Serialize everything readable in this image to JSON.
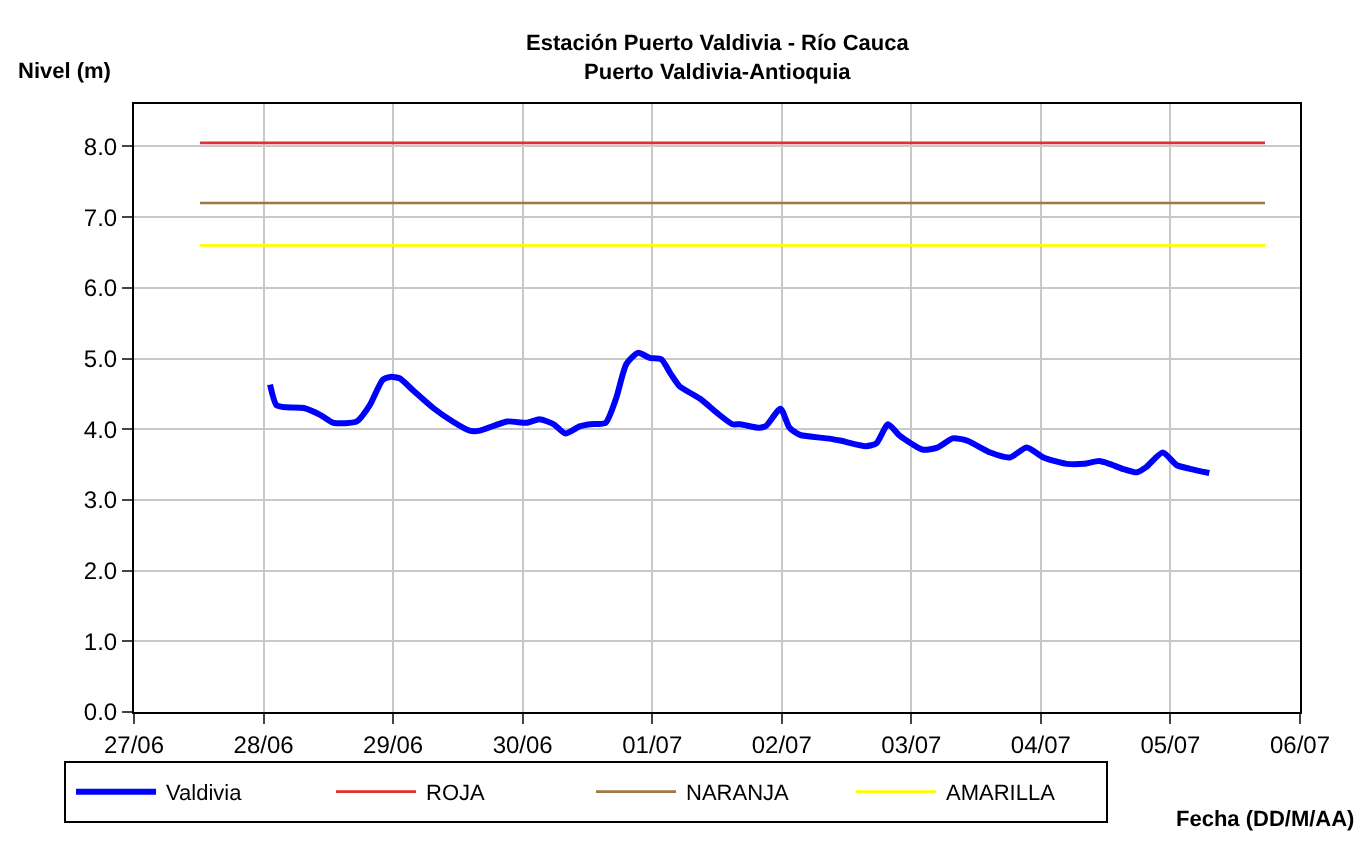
{
  "chart_data": {
    "type": "line",
    "title": "Estación Puerto Valdivia - Río Cauca",
    "subtitle": "Puerto Valdivia-Antioquia",
    "xlabel": "Fecha (DD/M/AA)",
    "ylabel": "Nivel (m)",
    "xlim": [
      "--06-27",
      "--07-06"
    ],
    "xticks": [
      {
        "value": "--06-27",
        "label": "27/06"
      },
      {
        "value": "--06-28",
        "label": "28/06"
      },
      {
        "value": "--06-29",
        "label": "29/06"
      },
      {
        "value": "--06-30",
        "label": "30/06"
      },
      {
        "value": "--07-01",
        "label": "01/07"
      },
      {
        "value": "--07-02",
        "label": "02/07"
      },
      {
        "value": "--07-03",
        "label": "03/07"
      },
      {
        "value": "--07-04",
        "label": "04/07"
      },
      {
        "value": "--07-05",
        "label": "05/07"
      },
      {
        "value": "--07-06",
        "label": "06/07"
      }
    ],
    "ylim": [
      0,
      8.6
    ],
    "yticks": [
      {
        "value": 0,
        "label": "0.0"
      },
      {
        "value": 1,
        "label": "1.0"
      },
      {
        "value": 2,
        "label": "2.0"
      },
      {
        "value": 3,
        "label": "3.0"
      },
      {
        "value": 4,
        "label": "4.0"
      },
      {
        "value": 5,
        "label": "5.0"
      },
      {
        "value": 6,
        "label": "6.0"
      },
      {
        "value": 7,
        "label": "7.0"
      },
      {
        "value": 8,
        "label": "8.0"
      }
    ],
    "grid": true,
    "legend": "bottom",
    "marker": "none",
    "line_style": "solid",
    "series": [
      {
        "name": "Valdivia",
        "color": "#0000ff",
        "x": [
          "--06-28T01:12",
          "--06-28T02:24",
          "--06-28T04:19",
          "--06-28T07:26",
          "--06-28T10:34",
          "--06-28T12:58",
          "--06-28T17:17",
          "--06-28T19:41",
          "--06-28T22:05",
          "--06-28T23:31",
          "--06-29T01:12",
          "--06-29T03:50",
          "--06-29T07:26",
          "--06-29T11:02",
          "--06-29T14:10",
          "--06-29T16:05",
          "--06-29T21:07",
          "--06-30T00:43",
          "--06-30T03:07",
          "--06-30T05:46",
          "--06-30T07:55",
          "--06-30T10:34",
          "--06-30T12:29",
          "--06-30T15:22",
          "--06-30T17:17",
          "--06-30T19:12",
          "--06-30T21:22",
          "--06-30T23:31",
          "--07-01T01:41",
          "--07-01T03:22",
          "--07-01T05:02",
          "--07-01T08:53",
          "--07-01T12:00",
          "--07-01T14:53",
          "--07-01T16:19",
          "--07-01T19:55",
          "--07-01T21:07",
          "--07-01T23:46",
          "--07-02T01:26",
          "--07-02T03:22",
          "--07-02T08:24",
          "--07-02T10:48",
          "--07-02T15:36",
          "--07-02T17:31",
          "--07-02T19:41",
          "--07-02T21:50",
          "--07-03T02:10",
          "--07-03T04:48",
          "--07-03T07:41",
          "--07-03T10:19",
          "--07-03T14:38",
          "--07-03T18:14",
          "--07-03T21:22",
          "--07-04T00:29",
          "--07-04T04:48",
          "--07-04T07:55",
          "--07-04T10:48",
          "--07-04T12:43",
          "--07-04T15:07",
          "--07-04T17:46",
          "--07-04T19:26",
          "--07-04T22:34",
          "--07-05T01:12",
          "--07-05T03:36",
          "--07-05T07:12"
        ],
        "values": [
          4.63,
          4.34,
          4.31,
          4.3,
          4.2,
          4.09,
          4.11,
          4.34,
          4.7,
          4.74,
          4.72,
          4.54,
          4.3,
          4.11,
          3.98,
          3.98,
          4.11,
          4.09,
          4.14,
          4.07,
          3.94,
          4.04,
          4.07,
          4.09,
          4.43,
          4.92,
          5.08,
          5.01,
          4.99,
          4.79,
          4.61,
          4.43,
          4.23,
          4.07,
          4.07,
          4.02,
          4.05,
          4.29,
          4.02,
          3.92,
          3.87,
          3.84,
          3.76,
          3.8,
          4.07,
          3.91,
          3.71,
          3.74,
          3.87,
          3.84,
          3.67,
          3.6,
          3.74,
          3.6,
          3.51,
          3.51,
          3.55,
          3.51,
          3.44,
          3.39,
          3.46,
          3.67,
          3.49,
          3.44,
          3.38
        ]
      },
      {
        "name": "ROJA",
        "color": "#e03030",
        "x": [
          "--06-27T12:14",
          "--07-05T17:31"
        ],
        "values": [
          8.05,
          8.05
        ]
      },
      {
        "name": "NARANJA",
        "color": "#a07840",
        "x": [
          "--06-27T12:14",
          "--07-05T17:31"
        ],
        "values": [
          7.2,
          7.2
        ]
      },
      {
        "name": "AMARILLA",
        "color": "#ffff00",
        "x": [
          "--06-27T12:14",
          "--07-05T17:31"
        ],
        "values": [
          6.6,
          6.6
        ]
      }
    ]
  }
}
